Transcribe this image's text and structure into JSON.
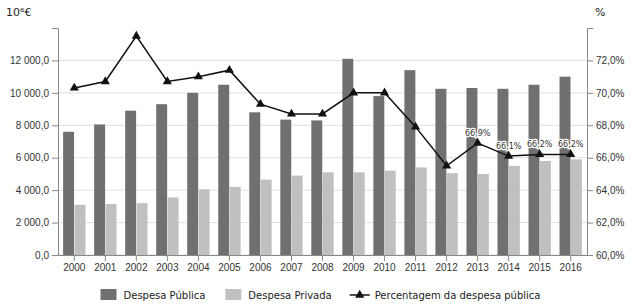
{
  "chart_data": {
    "type": "bar",
    "categories": [
      "2000",
      "2001",
      "2002",
      "2003",
      "2004",
      "2005",
      "2006",
      "2007",
      "2008",
      "2009",
      "2010",
      "2011",
      "2012",
      "2013",
      "2014",
      "2015",
      "2016"
    ],
    "series": [
      {
        "name": "Despesa Pública",
        "color": "#707070",
        "values": [
          7600,
          8050,
          8900,
          9300,
          10000,
          10500,
          8800,
          8350,
          8300,
          12100,
          9800,
          11400,
          10250,
          10300,
          10250,
          10500,
          11000
        ]
      },
      {
        "name": "Despesa Privada",
        "color": "#c0c0c0",
        "values": [
          3100,
          3150,
          3200,
          3550,
          4050,
          4200,
          4650,
          4900,
          5100,
          5100,
          5200,
          5400,
          5050,
          5000,
          5500,
          5800,
          5900
        ]
      },
      {
        "name": "Percentagem da despesa pública",
        "color": "#111111",
        "type": "line",
        "marker": "triangle",
        "axis": "y2",
        "values": [
          70.3,
          70.7,
          73.5,
          70.7,
          71.0,
          71.4,
          69.3,
          68.7,
          68.7,
          70.0,
          70.0,
          67.9,
          65.5,
          66.9,
          66.1,
          66.2,
          66.2
        ]
      }
    ],
    "y_label": "10⁶€",
    "y2_label": "%",
    "ylim": [
      0,
      14000
    ],
    "yticks": [
      {
        "value": 0,
        "label": "0,0"
      },
      {
        "value": 2000,
        "label": "2 000,0"
      },
      {
        "value": 4000,
        "label": "4 000,0"
      },
      {
        "value": 6000,
        "label": "6 000,0"
      },
      {
        "value": 8000,
        "label": "8 000,0"
      },
      {
        "value": 10000,
        "label": "10 000,0"
      },
      {
        "value": 12000,
        "label": "12 000,0"
      }
    ],
    "y2lim": [
      60.0,
      74.0
    ],
    "y2ticks": [
      {
        "value": 60.0,
        "label": "60,0%"
      },
      {
        "value": 62.0,
        "label": "62,0%"
      },
      {
        "value": 64.0,
        "label": "64,0%"
      },
      {
        "value": 66.0,
        "label": "66,0%"
      },
      {
        "value": 68.0,
        "label": "68,0%"
      },
      {
        "value": 70.0,
        "label": "70,0%"
      },
      {
        "value": 72.0,
        "label": "72,0%"
      }
    ],
    "annotations": [
      {
        "x": "2013",
        "y": 66.9,
        "text": "66,9%",
        "axis": "y2"
      },
      {
        "x": "2014",
        "y": 66.1,
        "text": "66,1%",
        "axis": "y2"
      },
      {
        "x": "2015",
        "y": 66.2,
        "text": "66,2%",
        "axis": "y2"
      },
      {
        "x": "2016",
        "y": 66.2,
        "text": "66,2%",
        "axis": "y2"
      }
    ],
    "grid": true,
    "legend": "bottom"
  }
}
